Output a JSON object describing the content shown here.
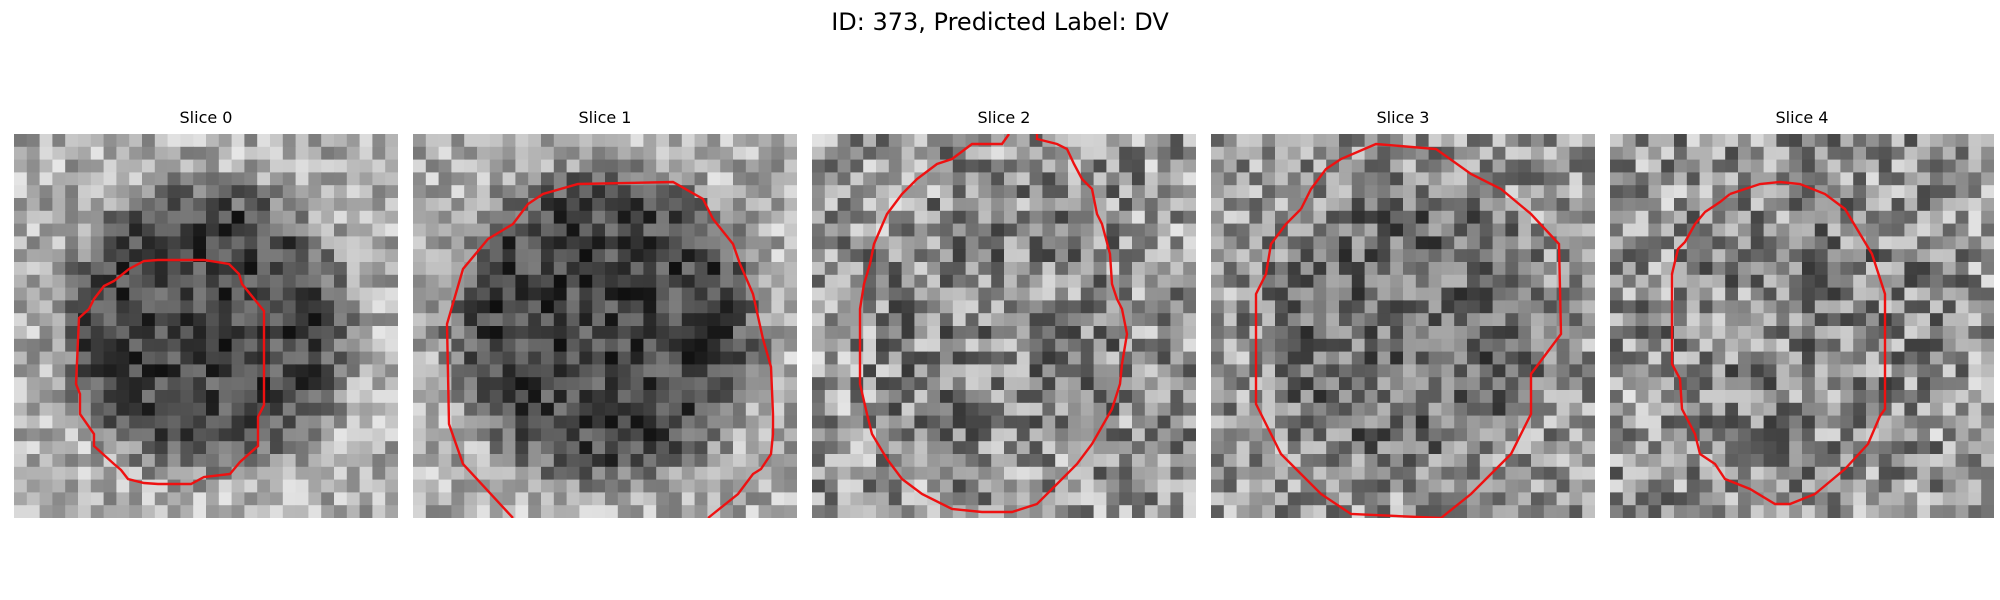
{
  "figure": {
    "title": "ID: 373, Predicted Label: DV"
  },
  "slices": [
    {
      "title": "Slice 0",
      "ring_darkness": "dark",
      "contour_color": "#ee1111"
    },
    {
      "title": "Slice 1",
      "ring_darkness": "dark",
      "contour_color": "#ee1111"
    },
    {
      "title": "Slice 2",
      "ring_darkness": "medium",
      "contour_color": "#ee1111"
    },
    {
      "title": "Slice 3",
      "ring_darkness": "medium-dark",
      "contour_color": "#ee1111"
    },
    {
      "title": "Slice 4",
      "ring_darkness": "medium",
      "contour_color": "#ee1111"
    }
  ]
}
